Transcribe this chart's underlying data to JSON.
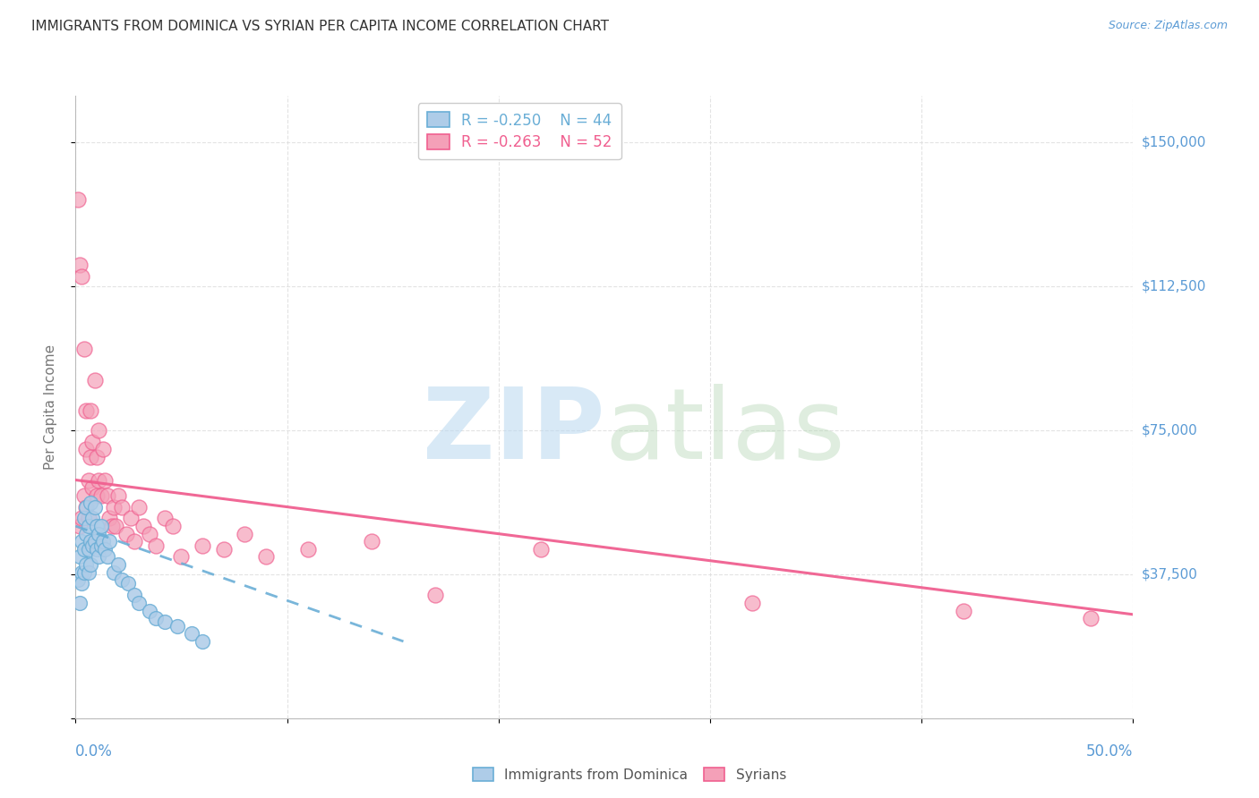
{
  "title": "IMMIGRANTS FROM DOMINICA VS SYRIAN PER CAPITA INCOME CORRELATION CHART",
  "source": "Source: ZipAtlas.com",
  "ylabel": "Per Capita Income",
  "yticks": [
    0,
    37500,
    75000,
    112500,
    150000
  ],
  "ytick_labels": [
    "",
    "$37,500",
    "$75,000",
    "$112,500",
    "$150,000"
  ],
  "xlim": [
    0.0,
    0.5
  ],
  "ylim": [
    0,
    162000
  ],
  "dominica_R": -0.25,
  "dominica_N": 44,
  "syrian_R": -0.263,
  "syrian_N": 52,
  "dominica_color": "#aecce8",
  "syrian_color": "#f4a0b8",
  "dominica_trend_color": "#6aaed6",
  "syrian_trend_color": "#f06090",
  "grid_color": "#dddddd",
  "background_color": "#ffffff",
  "dominica_x": [
    0.001,
    0.002,
    0.002,
    0.003,
    0.003,
    0.003,
    0.004,
    0.004,
    0.004,
    0.005,
    0.005,
    0.005,
    0.006,
    0.006,
    0.006,
    0.007,
    0.007,
    0.007,
    0.008,
    0.008,
    0.009,
    0.009,
    0.01,
    0.01,
    0.011,
    0.011,
    0.012,
    0.012,
    0.013,
    0.014,
    0.015,
    0.016,
    0.018,
    0.02,
    0.022,
    0.025,
    0.028,
    0.03,
    0.035,
    0.038,
    0.042,
    0.048,
    0.055,
    0.06
  ],
  "dominica_y": [
    36000,
    30000,
    42000,
    38000,
    46000,
    35000,
    52000,
    44000,
    38000,
    55000,
    48000,
    40000,
    50000,
    44000,
    38000,
    56000,
    46000,
    40000,
    52000,
    45000,
    55000,
    46000,
    50000,
    44000,
    48000,
    42000,
    50000,
    45000,
    46000,
    44000,
    42000,
    46000,
    38000,
    40000,
    36000,
    35000,
    32000,
    30000,
    28000,
    26000,
    25000,
    24000,
    22000,
    20000
  ],
  "syrian_x": [
    0.001,
    0.002,
    0.002,
    0.003,
    0.003,
    0.004,
    0.004,
    0.005,
    0.005,
    0.005,
    0.006,
    0.006,
    0.007,
    0.007,
    0.008,
    0.008,
    0.009,
    0.01,
    0.01,
    0.011,
    0.011,
    0.012,
    0.013,
    0.014,
    0.015,
    0.016,
    0.017,
    0.018,
    0.019,
    0.02,
    0.022,
    0.024,
    0.026,
    0.028,
    0.03,
    0.032,
    0.035,
    0.038,
    0.042,
    0.046,
    0.05,
    0.06,
    0.07,
    0.08,
    0.09,
    0.11,
    0.14,
    0.17,
    0.22,
    0.32,
    0.42,
    0.48
  ],
  "syrian_y": [
    135000,
    50000,
    118000,
    115000,
    52000,
    58000,
    96000,
    80000,
    55000,
    70000,
    62000,
    52000,
    68000,
    80000,
    72000,
    60000,
    88000,
    68000,
    58000,
    75000,
    62000,
    58000,
    70000,
    62000,
    58000,
    52000,
    50000,
    55000,
    50000,
    58000,
    55000,
    48000,
    52000,
    46000,
    55000,
    50000,
    48000,
    45000,
    52000,
    50000,
    42000,
    45000,
    44000,
    48000,
    42000,
    44000,
    46000,
    32000,
    44000,
    30000,
    28000,
    26000
  ],
  "dom_trend_x": [
    0.0,
    0.155
  ],
  "dom_trend_y": [
    50000,
    20000
  ],
  "syr_trend_x": [
    0.0,
    0.5
  ],
  "syr_trend_y": [
    62000,
    27000
  ]
}
